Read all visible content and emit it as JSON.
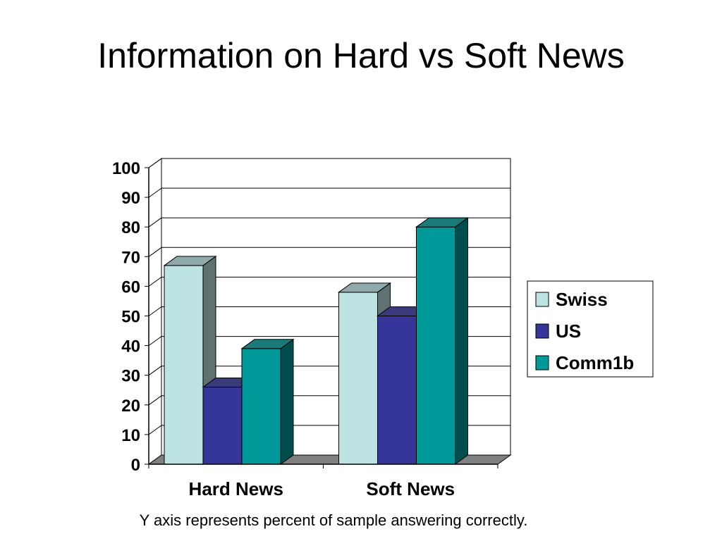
{
  "slide": {
    "title": "Information on Hard vs Soft News",
    "caption": "Y axis represents percent of sample answering correctly."
  },
  "chart_data": {
    "type": "bar",
    "title": "",
    "xlabel": "",
    "ylabel": "",
    "categories": [
      "Hard News",
      "Soft News"
    ],
    "series": [
      {
        "name": "Swiss",
        "values": [
          67,
          58
        ],
        "color": "#BDE2E2"
      },
      {
        "name": "US",
        "values": [
          26,
          50
        ],
        "color": "#35359A"
      },
      {
        "name": "Comm1b",
        "values": [
          39,
          80
        ],
        "color": "#009999"
      }
    ],
    "ylim": [
      0,
      100
    ],
    "yticks": [
      "0",
      "10",
      "20",
      "30",
      "40",
      "50",
      "60",
      "70",
      "80",
      "90",
      "100"
    ],
    "grid": true,
    "legend": "right",
    "style": "3d-column"
  }
}
